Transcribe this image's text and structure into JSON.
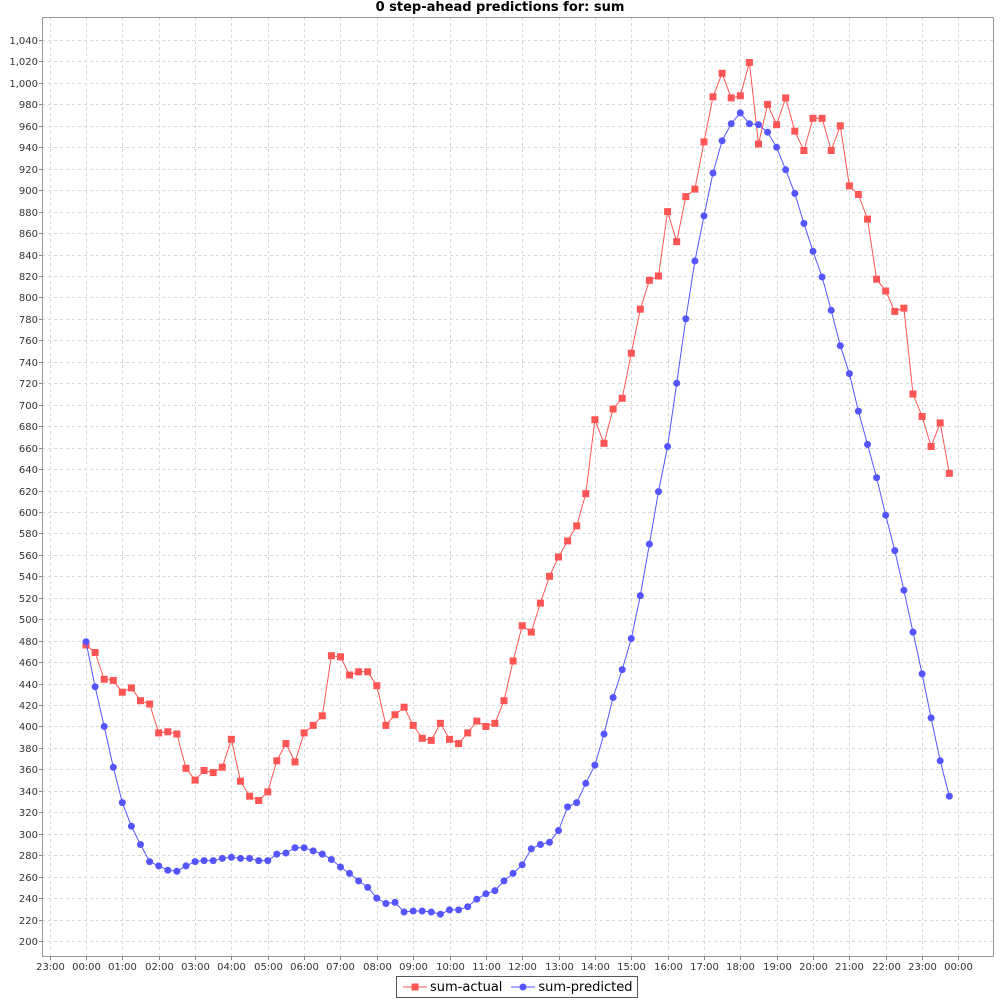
{
  "chart_data": {
    "type": "line",
    "title": "0 step-ahead predictions for: sum",
    "xlabel": "",
    "ylabel": "",
    "ylim": [
      190,
      1055
    ],
    "grid": true,
    "legend_position": "bottom-center",
    "x_tick_labels": [
      "23:00",
      "00:00",
      "01:00",
      "02:00",
      "03:00",
      "04:00",
      "05:00",
      "06:00",
      "07:00",
      "08:00",
      "09:00",
      "10:00",
      "11:00",
      "12:00",
      "13:00",
      "14:00",
      "15:00",
      "16:00",
      "17:00",
      "18:00",
      "19:00",
      "20:00",
      "21:00",
      "22:00",
      "23:00",
      "00:00"
    ],
    "y_ticks": [
      200,
      220,
      240,
      260,
      280,
      300,
      320,
      340,
      360,
      380,
      400,
      420,
      440,
      460,
      480,
      500,
      520,
      540,
      560,
      580,
      600,
      620,
      640,
      660,
      680,
      700,
      720,
      740,
      760,
      780,
      800,
      820,
      840,
      860,
      880,
      900,
      920,
      940,
      960,
      980,
      1000,
      1020,
      1040
    ],
    "x_start_hour": 0,
    "x_step_hours": 0.25,
    "series": [
      {
        "name": "sum-actual",
        "color": "#ff5555",
        "marker": "square",
        "values": [
          476,
          469,
          444,
          443,
          432,
          436,
          424,
          421,
          394,
          395,
          393,
          361,
          350,
          359,
          357,
          362,
          388,
          349,
          335,
          331,
          339,
          368,
          384,
          367,
          394,
          401,
          410,
          466,
          465,
          448,
          451,
          451,
          438,
          401,
          411,
          418,
          401,
          389,
          387,
          403,
          388,
          384,
          394,
          405,
          400,
          403,
          424,
          461,
          494,
          488,
          515,
          540,
          558,
          573,
          587,
          617,
          686,
          664,
          696,
          706,
          748,
          789,
          816,
          820,
          880,
          852,
          894,
          901,
          945,
          987,
          1009,
          986,
          988,
          1019,
          943,
          980,
          961,
          986,
          955,
          937,
          967,
          967,
          937,
          960,
          904,
          896,
          873,
          817,
          806,
          787,
          790,
          710,
          689,
          661,
          683,
          636
        ]
      },
      {
        "name": "sum-predicted",
        "color": "#5555ff",
        "marker": "circle",
        "values": [
          479,
          437,
          400,
          362,
          329,
          307,
          290,
          274,
          270,
          266,
          265,
          270,
          274,
          275,
          275,
          277,
          278,
          277,
          277,
          275,
          275,
          281,
          282,
          287,
          287,
          284,
          281,
          276,
          269,
          263,
          256,
          250,
          240,
          235,
          236,
          227,
          228,
          228,
          227,
          225,
          229,
          229,
          232,
          239,
          244,
          247,
          256,
          263,
          271,
          286,
          290,
          292,
          303,
          325,
          329,
          347,
          364,
          393,
          427,
          453,
          482,
          522,
          570,
          619,
          661,
          720,
          780,
          834,
          876,
          916,
          946,
          962,
          972,
          962,
          961,
          954,
          940,
          919,
          897,
          869,
          843,
          819,
          788,
          755,
          729,
          694,
          663,
          632,
          597,
          564,
          527,
          488,
          449,
          408,
          368,
          335
        ]
      }
    ]
  }
}
